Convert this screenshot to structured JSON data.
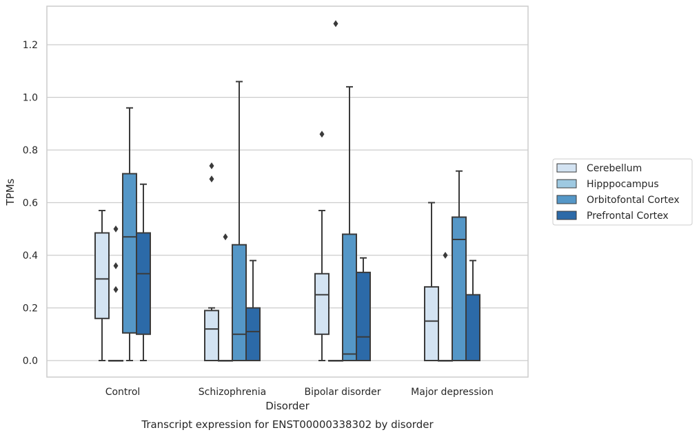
{
  "chart_data": {
    "type": "box",
    "caption": "Transcript expression for ENST00000338302 by disorder",
    "xlabel": "Disorder",
    "ylabel": "TPMs",
    "ylim": [
      -0.062,
      1.355
    ],
    "yticks": [
      "0.0",
      "0.2",
      "0.4",
      "0.6",
      "0.8",
      "1.0",
      "1.2"
    ],
    "grid": "horizontal",
    "legend_position": "right",
    "categories": [
      "Control",
      "Schizophrenia",
      "Bipolar disorder",
      "Major depression"
    ],
    "series": [
      {
        "name": "Cerebellum",
        "color": "#d3e3f2",
        "boxes": [
          {
            "whisker_low": 0.0,
            "q1": 0.16,
            "median": 0.31,
            "q3": 0.485,
            "whisker_high": 0.57,
            "outliers": []
          },
          {
            "whisker_low": 0.0,
            "q1": 0.0,
            "median": 0.12,
            "q3": 0.19,
            "whisker_high": 0.2,
            "outliers": [
              0.69,
              0.74
            ]
          },
          {
            "whisker_low": 0.0,
            "q1": 0.1,
            "median": 0.25,
            "q3": 0.33,
            "whisker_high": 0.57,
            "outliers": [
              0.86
            ]
          },
          {
            "whisker_low": 0.0,
            "q1": 0.0,
            "median": 0.15,
            "q3": 0.28,
            "whisker_high": 0.6,
            "outliers": []
          }
        ]
      },
      {
        "name": "Hipppocampus",
        "color": "#9ec9e1",
        "boxes": [
          {
            "whisker_low": 0.0,
            "q1": 0.0,
            "median": 0.0,
            "q3": 0.0,
            "whisker_high": 0.0,
            "outliers": [
              0.27,
              0.36,
              0.5
            ]
          },
          {
            "whisker_low": 0.0,
            "q1": 0.0,
            "median": 0.0,
            "q3": 0.0,
            "whisker_high": 0.0,
            "outliers": [
              0.47
            ]
          },
          {
            "whisker_low": 0.0,
            "q1": 0.0,
            "median": 0.0,
            "q3": 0.0,
            "whisker_high": 0.0,
            "outliers": [
              1.28
            ]
          },
          {
            "whisker_low": 0.0,
            "q1": 0.0,
            "median": 0.0,
            "q3": 0.0,
            "whisker_high": 0.0,
            "outliers": [
              0.4
            ]
          }
        ]
      },
      {
        "name": "Orbitofontal Cortex",
        "color": "#5597c7",
        "boxes": [
          {
            "whisker_low": 0.0,
            "q1": 0.105,
            "median": 0.47,
            "q3": 0.71,
            "whisker_high": 0.96,
            "outliers": []
          },
          {
            "whisker_low": 0.0,
            "q1": 0.0,
            "median": 0.1,
            "q3": 0.44,
            "whisker_high": 1.06,
            "outliers": []
          },
          {
            "whisker_low": 0.0,
            "q1": 0.0,
            "median": 0.025,
            "q3": 0.48,
            "whisker_high": 1.04,
            "outliers": []
          },
          {
            "whisker_low": 0.0,
            "q1": 0.0,
            "median": 0.46,
            "q3": 0.545,
            "whisker_high": 0.72,
            "outliers": []
          }
        ]
      },
      {
        "name": "Prefrontal Cortex",
        "color": "#2c6aa8",
        "boxes": [
          {
            "whisker_low": 0.0,
            "q1": 0.1,
            "median": 0.33,
            "q3": 0.485,
            "whisker_high": 0.67,
            "outliers": []
          },
          {
            "whisker_low": 0.0,
            "q1": 0.0,
            "median": 0.11,
            "q3": 0.2,
            "whisker_high": 0.38,
            "outliers": []
          },
          {
            "whisker_low": 0.0,
            "q1": 0.0,
            "median": 0.09,
            "q3": 0.335,
            "whisker_high": 0.39,
            "outliers": []
          },
          {
            "whisker_low": 0.0,
            "q1": 0.0,
            "median": 0.0,
            "q3": 0.25,
            "whisker_high": 0.38,
            "outliers": []
          }
        ]
      }
    ]
  }
}
